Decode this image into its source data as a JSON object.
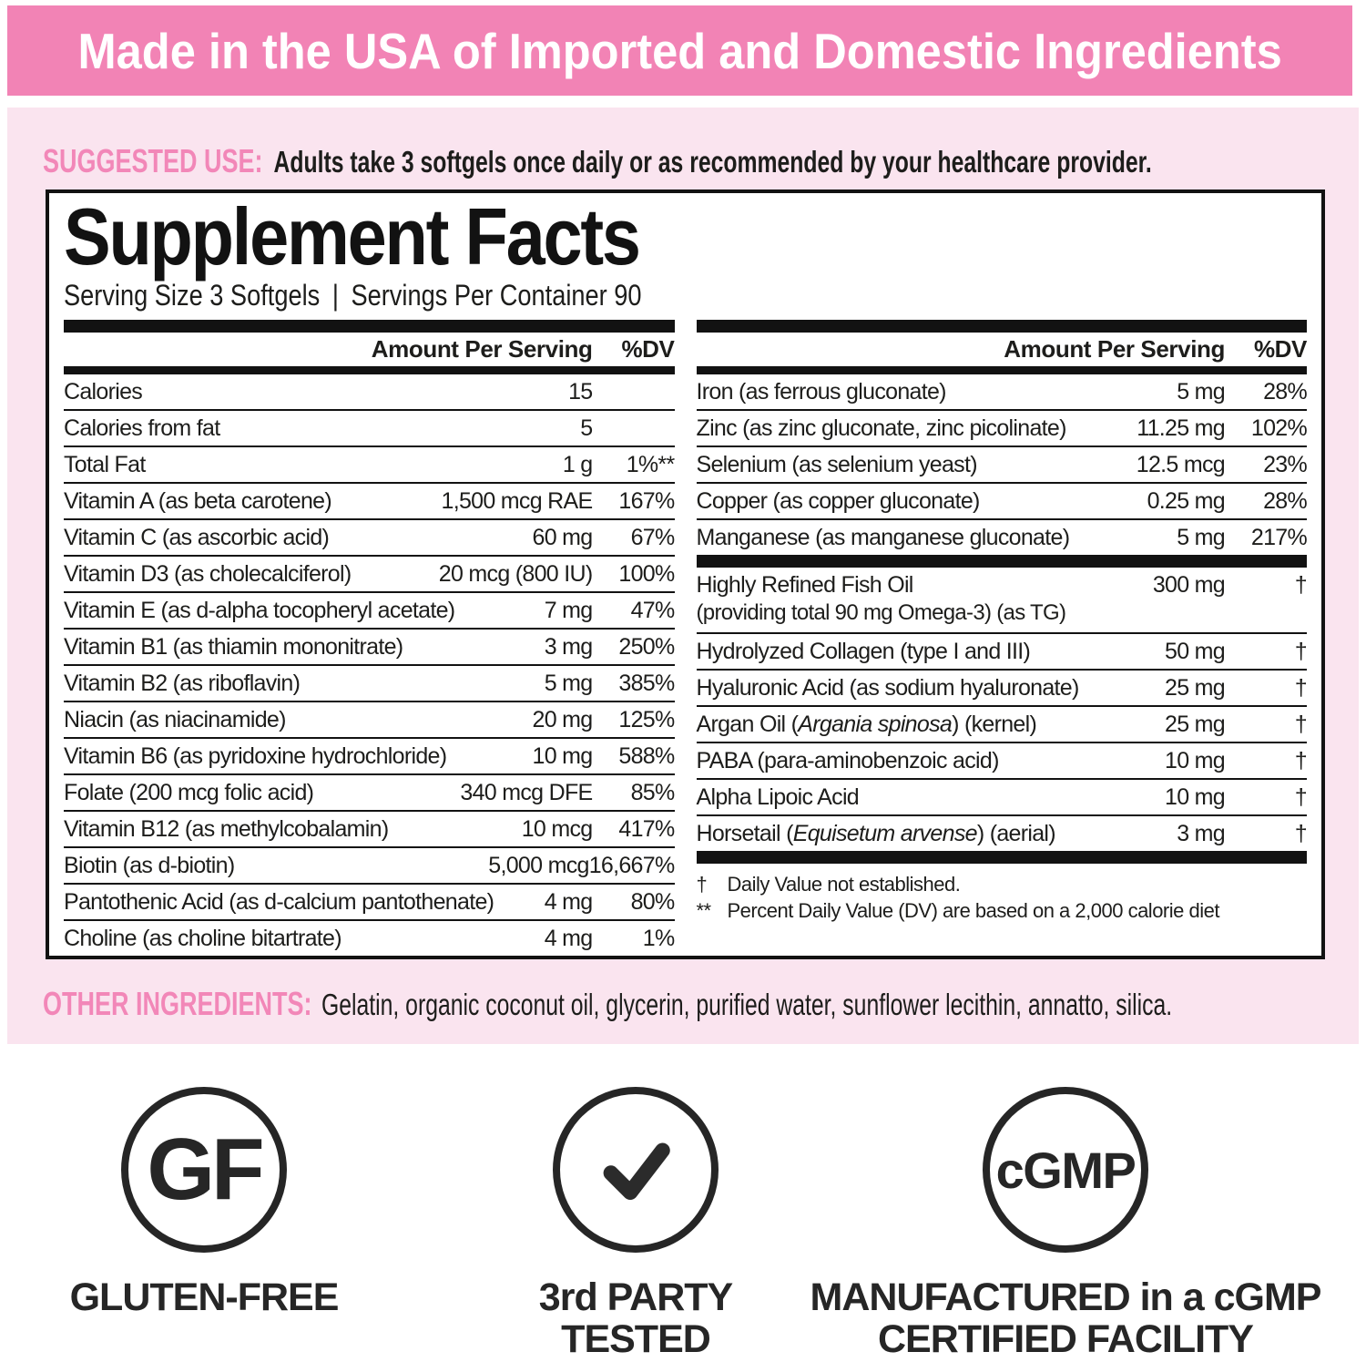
{
  "colors": {
    "banner_pink": "#F283B5",
    "panel_pink": "#FAE4EF",
    "accent_pink": "#F287B8",
    "ink": "#1D1D1B"
  },
  "banner": {
    "text": "Made in the USA of Imported and Domestic Ingredients"
  },
  "suggested_use": {
    "label": "SUGGESTED USE:",
    "text": "Adults take 3 softgels once daily or as recommended by your healthcare provider."
  },
  "supplement_facts": {
    "title": "Supplement Facts",
    "serving_size": "Serving Size 3 Softgels",
    "separator": "|",
    "servings_per_container": "Servings Per Container 90",
    "col_header": {
      "amount": "Amount Per Serving",
      "dv": "%DV"
    },
    "left_rows": [
      {
        "name": "Calories",
        "amount": "15",
        "dv": ""
      },
      {
        "name": "Calories from fat",
        "amount": "5",
        "dv": ""
      },
      {
        "name": "Total Fat",
        "amount": "1 g",
        "dv": "1%**"
      },
      {
        "name": "Vitamin A (as beta carotene)",
        "amount": "1,500 mcg RAE",
        "dv": "167%"
      },
      {
        "name": "Vitamin C (as ascorbic acid)",
        "amount": "60 mg",
        "dv": "67%"
      },
      {
        "name": "Vitamin D3 (as cholecalciferol)",
        "amount": "20 mcg (800 IU)",
        "dv": "100%"
      },
      {
        "name": "Vitamin E (as d-alpha tocopheryl acetate)",
        "amount": "7 mg",
        "dv": "47%"
      },
      {
        "name": "Vitamin B1 (as thiamin mononitrate)",
        "amount": "3 mg",
        "dv": "250%"
      },
      {
        "name": "Vitamin B2 (as riboflavin)",
        "amount": "5 mg",
        "dv": "385%"
      },
      {
        "name": "Niacin (as niacinamide)",
        "amount": "20 mg",
        "dv": "125%"
      },
      {
        "name": "Vitamin B6 (as pyridoxine hydrochloride)",
        "amount": "10 mg",
        "dv": "588%"
      },
      {
        "name": "Folate (200 mcg folic acid)",
        "amount": "340 mcg DFE",
        "dv": "85%"
      },
      {
        "name": "Vitamin B12 (as methylcobalamin)",
        "amount": "10 mcg",
        "dv": "417%"
      },
      {
        "name": "Biotin (as d-biotin)",
        "amount": "5,000 mcg",
        "dv": "16,667%"
      },
      {
        "name": "Pantothenic Acid (as d-calcium pantothenate)",
        "amount": "4 mg",
        "dv": "80%"
      },
      {
        "name": "Choline (as choline bitartrate)",
        "amount": "4 mg",
        "dv": "1%"
      }
    ],
    "mineral_rows": [
      {
        "name": "Iron (as ferrous gluconate)",
        "amount": "5 mg",
        "dv": "28%"
      },
      {
        "name": "Zinc (as zinc gluconate, zinc picolinate)",
        "amount": "11.25 mg",
        "dv": "102%"
      },
      {
        "name": "Selenium (as selenium yeast)",
        "amount": "12.5 mcg",
        "dv": "23%"
      },
      {
        "name": "Copper (as copper gluconate)",
        "amount": "0.25 mg",
        "dv": "28%"
      },
      {
        "name": "Manganese (as manganese gluconate)",
        "amount": "5 mg",
        "dv": "217%"
      }
    ],
    "other_rows": [
      {
        "name": "Highly Refined Fish Oil",
        "sub": "(providing total 90 mg Omega-3) (as TG)",
        "amount": "300 mg",
        "dv": "†"
      },
      {
        "name": "Hydrolyzed Collagen (type I and III)",
        "amount": "50 mg",
        "dv": "†"
      },
      {
        "name": "Hyaluronic Acid (as sodium hyaluronate)",
        "amount": "25 mg",
        "dv": "†"
      },
      {
        "name": "Argan Oil (",
        "italic": "Argania spinosa",
        "post": ") (kernel)",
        "amount": "25 mg",
        "dv": "†"
      },
      {
        "name": "PABA (para-aminobenzoic acid)",
        "amount": "10 mg",
        "dv": "†"
      },
      {
        "name": "Alpha Lipoic Acid",
        "amount": "10 mg",
        "dv": "†"
      },
      {
        "name": "Horsetail (",
        "italic": "Equisetum arvense",
        "post": ") (aerial)",
        "amount": "3 mg",
        "dv": "†"
      }
    ],
    "footnotes": [
      {
        "symbol": "†",
        "text": "Daily Value not established."
      },
      {
        "symbol": "**",
        "text": "Percent Daily Value (DV) are based on a 2,000 calorie diet"
      }
    ]
  },
  "other_ingredients": {
    "label": "OTHER INGREDIENTS:",
    "text": "Gelatin, organic coconut oil, glycerin, purified water, sunflower lecithin, annatto, silica."
  },
  "badges": {
    "gluten_free": {
      "icon_text": "GF",
      "label": "GLUTEN-FREE"
    },
    "third_party": {
      "label_line1": "3rd PARTY",
      "label_line2": "TESTED"
    },
    "cgmp": {
      "icon_text": "cGMP",
      "label_line1": "MANUFACTURED in a cGMP",
      "label_line2": "CERTIFIED FACILITY"
    }
  }
}
